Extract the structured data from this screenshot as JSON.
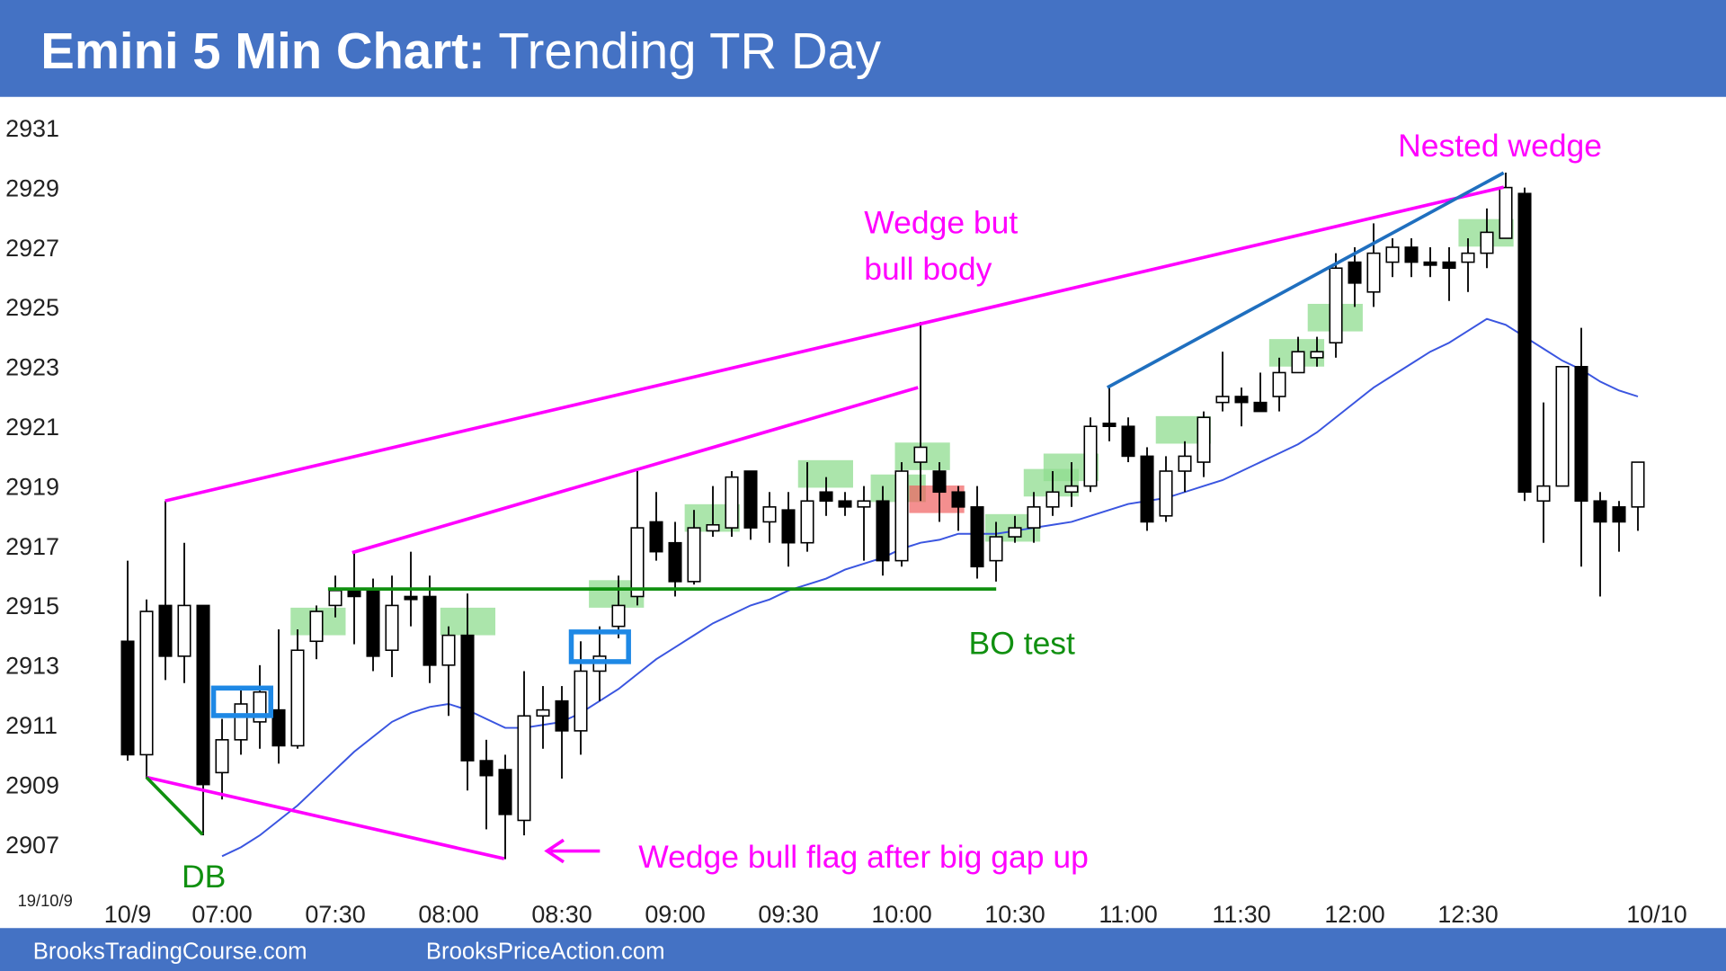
{
  "chart_data": {
    "type": "candlestick",
    "title": "Emini 5 Min Chart:",
    "subtitle": "Trending TR Day",
    "date_stamp": "19/10/9",
    "categories": [
      "10/9",
      null,
      null,
      null,
      null,
      "07:00",
      null,
      null,
      null,
      null,
      null,
      "07:30",
      null,
      null,
      null,
      null,
      null,
      "08:00",
      null,
      null,
      null,
      null,
      null,
      "08:30",
      null,
      null,
      null,
      null,
      null,
      "09:00",
      null,
      null,
      null,
      null,
      null,
      "09:30",
      null,
      null,
      null,
      null,
      null,
      "10:00",
      null,
      null,
      null,
      null,
      null,
      "10:30",
      null,
      null,
      null,
      null,
      null,
      "11:00",
      null,
      null,
      null,
      null,
      null,
      "11:30",
      null,
      null,
      null,
      null,
      null,
      "12:00",
      null,
      null,
      null,
      null,
      null,
      "12:30",
      null,
      null,
      null,
      null,
      null,
      null,
      null,
      null,
      null,
      "10/10"
    ],
    "open": [
      2913.8,
      2910.0,
      2915.0,
      2913.3,
      2915.0,
      2909.4,
      2910.5,
      2911.1,
      2911.5,
      2910.3,
      2913.8,
      2915.0,
      2915.5,
      2915.5,
      2913.5,
      2915.3,
      2915.3,
      2913.0,
      2914.0,
      2909.8,
      2909.5,
      2907.8,
      2911.3,
      2911.8,
      2910.8,
      2912.8,
      2914.3,
      2915.3,
      2917.8,
      2917.1,
      2915.8,
      2917.5,
      2917.6,
      2919.5,
      2917.8,
      2918.2,
      2917.1,
      2918.8,
      2918.5,
      2918.3,
      2918.5,
      2916.5,
      2919.8,
      2919.5,
      2918.8,
      2918.3,
      2916.5,
      2917.3,
      2917.6,
      2918.3,
      2918.8,
      2919.0,
      2921.1,
      2921.0,
      2920.0,
      2918.0,
      2919.5,
      2919.8,
      2921.8,
      2922.0,
      2921.8,
      2922.0,
      2922.8,
      2923.3,
      2923.8,
      2926.5,
      2925.5,
      2926.5,
      2927.0,
      2926.5,
      2926.5,
      2926.5,
      2926.8,
      2927.3,
      2928.8,
      2918.5,
      2919.0,
      2923.0,
      2918.5,
      2918.3,
      2918.3,
      null
    ],
    "high": [
      2916.5,
      2915.2,
      2918.5,
      2917.1,
      2915.0,
      2911.2,
      2912.3,
      2913.0,
      2914.2,
      2914.2,
      2915.0,
      2916.0,
      2916.8,
      2915.9,
      2916.0,
      2916.8,
      2916.0,
      2914.3,
      2915.4,
      2910.5,
      2910.0,
      2912.8,
      2912.3,
      2912.3,
      2913.8,
      2914.3,
      2916.0,
      2919.5,
      2918.8,
      2917.8,
      2918.2,
      2919.0,
      2919.5,
      2919.5,
      2918.8,
      2918.8,
      2919.8,
      2919.3,
      2918.8,
      2919.0,
      2919.0,
      2919.8,
      2924.5,
      2919.8,
      2919.0,
      2919.0,
      2917.8,
      2918.0,
      2918.8,
      2919.5,
      2919.8,
      2921.3,
      2922.3,
      2921.3,
      2920.3,
      2920.0,
      2920.5,
      2921.5,
      2923.5,
      2922.3,
      2922.8,
      2923.3,
      2924.0,
      2924.0,
      2926.8,
      2927.0,
      2927.8,
      2927.3,
      2927.3,
      2927.0,
      2927.0,
      2927.3,
      2928.3,
      2929.5,
      2929.0,
      2921.8,
      2923.0,
      2924.3,
      2918.8,
      2918.5,
      2919.8,
      null
    ],
    "low": [
      2909.8,
      2909.2,
      2912.5,
      2912.4,
      2907.3,
      2908.5,
      2910.0,
      2910.2,
      2909.7,
      2910.2,
      2913.2,
      2914.6,
      2913.7,
      2912.8,
      2912.6,
      2914.3,
      2912.4,
      2911.3,
      2908.8,
      2907.5,
      2906.5,
      2907.3,
      2910.2,
      2909.2,
      2910.0,
      2911.8,
      2913.9,
      2915.0,
      2916.5,
      2915.3,
      2915.7,
      2917.3,
      2917.3,
      2917.2,
      2917.1,
      2916.3,
      2916.8,
      2918.0,
      2918.0,
      2916.5,
      2916.0,
      2916.3,
      2918.5,
      2917.8,
      2917.5,
      2915.9,
      2915.8,
      2917.1,
      2917.1,
      2918.0,
      2918.3,
      2918.8,
      2920.5,
      2919.8,
      2917.5,
      2917.8,
      2918.8,
      2919.3,
      2921.5,
      2921.0,
      2921.5,
      2921.5,
      2922.8,
      2923.0,
      2923.3,
      2925.0,
      2925.0,
      2926.0,
      2926.0,
      2926.0,
      2925.2,
      2925.5,
      2926.3,
      2927.3,
      2918.5,
      2917.1,
      2919.0,
      2916.3,
      2915.3,
      2916.8,
      2917.5,
      null
    ],
    "close": [
      2910.0,
      2914.8,
      2913.3,
      2915.0,
      2909.0,
      2910.5,
      2911.7,
      2912.1,
      2910.3,
      2913.5,
      2914.8,
      2915.5,
      2915.3,
      2913.3,
      2915.0,
      2915.2,
      2913.0,
      2914.0,
      2909.8,
      2909.3,
      2908.0,
      2911.3,
      2911.5,
      2910.8,
      2912.8,
      2913.3,
      2915.0,
      2917.6,
      2916.8,
      2915.8,
      2917.6,
      2917.7,
      2919.3,
      2917.6,
      2918.3,
      2917.1,
      2918.5,
      2918.5,
      2918.3,
      2918.5,
      2916.5,
      2919.5,
      2920.3,
      2918.8,
      2918.3,
      2916.3,
      2917.3,
      2917.6,
      2918.3,
      2918.8,
      2919.0,
      2921.0,
      2921.0,
      2920.0,
      2917.8,
      2919.5,
      2920.0,
      2921.3,
      2922.0,
      2921.8,
      2921.5,
      2922.8,
      2923.5,
      2923.5,
      2926.3,
      2925.8,
      2926.8,
      2927.0,
      2926.5,
      2926.4,
      2926.3,
      2926.8,
      2927.5,
      2929.0,
      2918.8,
      2919.0,
      2923.0,
      2918.5,
      2917.8,
      2917.8,
      2919.8,
      null
    ],
    "ema": [
      null,
      null,
      null,
      null,
      null,
      2906.6,
      2906.9,
      2907.3,
      2907.8,
      2908.3,
      2908.9,
      2909.5,
      2910.1,
      2910.6,
      2911.1,
      2911.4,
      2911.6,
      2911.7,
      2911.5,
      2911.2,
      2910.9,
      2910.9,
      2911.0,
      2911.1,
      2911.4,
      2911.8,
      2912.2,
      2912.7,
      2913.2,
      2913.6,
      2914.0,
      2914.4,
      2914.7,
      2915.0,
      2915.2,
      2915.5,
      2915.7,
      2915.9,
      2916.2,
      2916.4,
      2916.6,
      2916.9,
      2917.1,
      2917.2,
      2917.4,
      2917.4,
      2917.4,
      2917.5,
      2917.6,
      2917.7,
      2917.8,
      2918.0,
      2918.2,
      2918.4,
      2918.5,
      2918.6,
      2918.8,
      2919.0,
      2919.2,
      2919.5,
      2919.8,
      2920.1,
      2920.4,
      2920.8,
      2921.3,
      2921.8,
      2922.3,
      2922.7,
      2923.1,
      2923.5,
      2923.8,
      2924.2,
      2924.6,
      2924.4,
      2924.0,
      2923.6,
      2923.2,
      2922.9,
      2922.5,
      2922.2,
      2922.0,
      null
    ],
    "up_color": "#ffffff",
    "down_color": "#000000",
    "ema_color": "#3a55e0",
    "ylim": [
      2906,
      2932
    ],
    "yticks": [
      2907,
      2909,
      2911,
      2913,
      2915,
      2917,
      2919,
      2921,
      2923,
      2925,
      2927,
      2929,
      2931
    ],
    "annotations": [
      {
        "text": "Nested wedge",
        "color": "#ff00ff"
      },
      {
        "text": "Wedge but",
        "color": "#ff00ff"
      },
      {
        "text": "bull body",
        "color": "#ff00ff"
      },
      {
        "text": "BO test",
        "color": "#109010"
      },
      {
        "text": "DB",
        "color": "#109010"
      },
      {
        "text": "Wedge bull flag after big gap up",
        "color": "#ff00ff"
      }
    ]
  },
  "footer": {
    "left": "BrooksTradingCourse.com",
    "right": "BrooksPriceAction.com"
  }
}
